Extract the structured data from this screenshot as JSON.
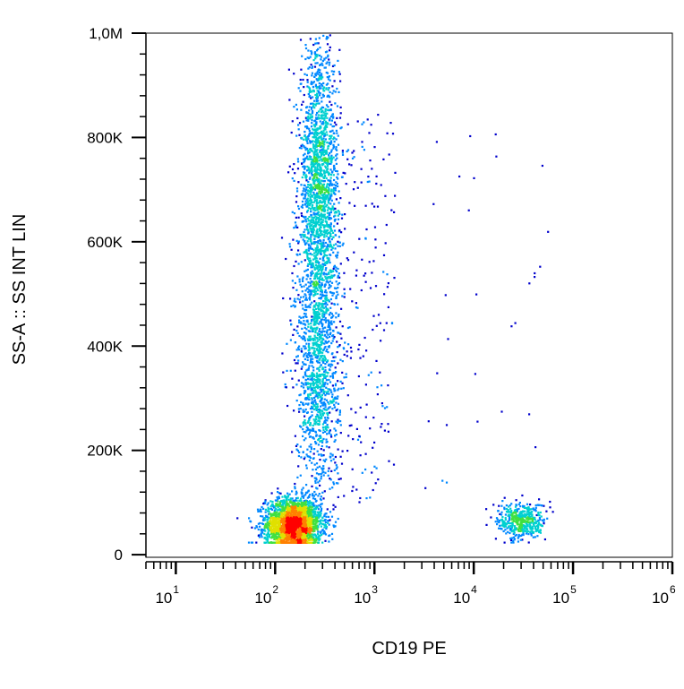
{
  "chart_data": {
    "type": "scatter",
    "subtype": "flow-cytometry-density-dot-plot",
    "title": "",
    "xlabel": "CD19 PE",
    "ylabel": "SS-A :: SS INT LIN",
    "x_scale": "log",
    "y_scale": "linear",
    "xlim": [
      5,
      1000000
    ],
    "ylim": [
      -5000,
      1000000
    ],
    "x_ticks": [
      {
        "value": 10,
        "base": "10",
        "exp": "1"
      },
      {
        "value": 100,
        "base": "10",
        "exp": "2"
      },
      {
        "value": 1000,
        "base": "10",
        "exp": "3"
      },
      {
        "value": 10000,
        "base": "10",
        "exp": "4"
      },
      {
        "value": 100000,
        "base": "10",
        "exp": "5"
      },
      {
        "value": 1000000,
        "base": "10",
        "exp": "6"
      }
    ],
    "y_ticks": [
      {
        "value": 0,
        "label": "0"
      },
      {
        "value": 200000,
        "label": "200K"
      },
      {
        "value": 400000,
        "label": "400K"
      },
      {
        "value": 600000,
        "label": "600K"
      },
      {
        "value": 800000,
        "label": "800K"
      },
      {
        "value": 1000000,
        "label": "1,0M"
      }
    ],
    "grid": false,
    "color_scale": [
      "#0000cc",
      "#0088ff",
      "#00d0d0",
      "#40e040",
      "#e0e000",
      "#ff8000",
      "#ff0000"
    ],
    "populations": [
      {
        "x_center": 150,
        "y_center": 60000,
        "x_spread_decades": 0.14,
        "y_spread": 25000,
        "density": "high"
      },
      {
        "x_center": 270,
        "y_center": 700000,
        "x_spread_decades": 0.1,
        "y_spread": 140000,
        "density": "medium-high"
      },
      {
        "x_center": 260,
        "y_center": 350000,
        "x_spread_decades": 0.11,
        "y_spread": 120000,
        "density": "medium"
      },
      {
        "x_center": 30000,
        "y_center": 65000,
        "x_spread_decades": 0.12,
        "y_spread": 18000,
        "density": "medium"
      }
    ]
  }
}
